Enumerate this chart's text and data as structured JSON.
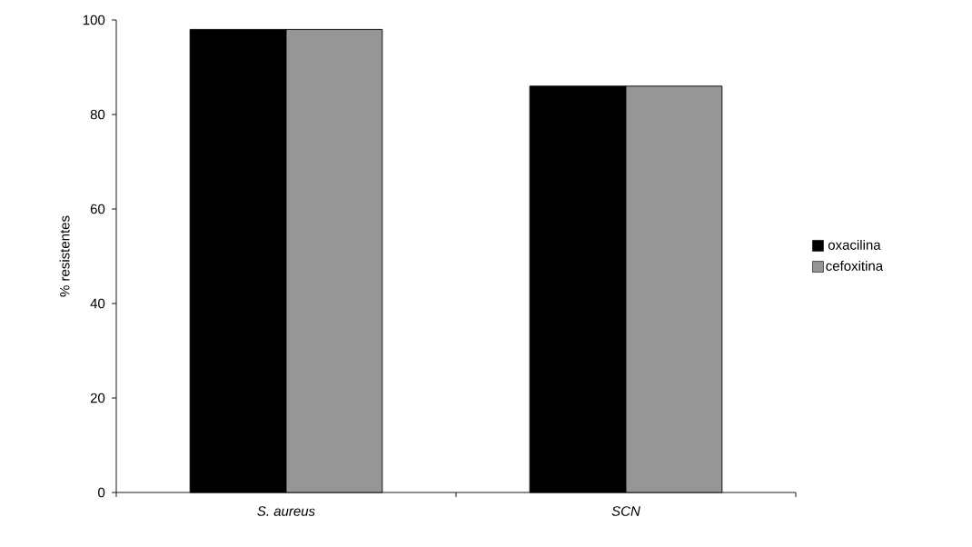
{
  "chart_data": {
    "type": "bar",
    "ylabel": "% resistentes",
    "categories": [
      "S. aureus",
      "SCN"
    ],
    "series": [
      {
        "name": "oxacilina",
        "color": "#000000",
        "values": [
          98,
          86
        ]
      },
      {
        "name": "cefoxitina",
        "color": "#969696",
        "values": [
          98,
          86
        ]
      }
    ],
    "ylim": [
      0,
      100
    ],
    "yticks": [
      0,
      20,
      40,
      60,
      80,
      100
    ],
    "legend": "right",
    "grid": false
  }
}
